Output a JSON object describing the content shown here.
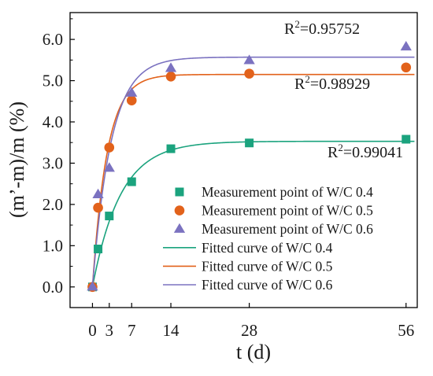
{
  "chart_data": {
    "type": "scatter",
    "xlabel": "t (d)",
    "ylabel": "(m’-m)/m (%)",
    "xlim": [
      -4,
      58
    ],
    "ylim": [
      -0.5,
      6.65
    ],
    "x_ticks": [
      0,
      3,
      7,
      14,
      28,
      56
    ],
    "x_tick_labels": [
      "0",
      "3",
      "7",
      "14",
      "28",
      "56"
    ],
    "y_ticks": [
      0,
      1,
      2,
      3,
      4,
      5,
      6
    ],
    "y_tick_labels": [
      "0.0",
      "1.0",
      "2.0",
      "3.0",
      "4.0",
      "5.0",
      "6.0"
    ],
    "grid": false,
    "legend_position": "bottom-right",
    "series": [
      {
        "name": "Measurement point  of W/C 0.4",
        "kind": "points",
        "marker": "square",
        "color": "#1ba37e",
        "x": [
          0,
          1,
          3,
          7,
          14,
          28,
          56
        ],
        "y": [
          0.0,
          0.92,
          1.72,
          2.55,
          3.35,
          3.49,
          3.58
        ]
      },
      {
        "name": "Measurement point  of W/C 0.5",
        "kind": "points",
        "marker": "circle",
        "color": "#e2621b",
        "x": [
          0,
          1,
          3,
          7,
          14,
          28,
          56
        ],
        "y": [
          0.0,
          1.92,
          3.38,
          4.52,
          5.1,
          5.17,
          5.32
        ]
      },
      {
        "name": "Measurement point  of W/C 0.6",
        "kind": "points",
        "marker": "triangle",
        "color": "#7b72c0",
        "x": [
          0,
          1,
          3,
          7,
          14,
          28,
          56
        ],
        "y": [
          0.0,
          2.24,
          2.88,
          4.7,
          5.3,
          5.49,
          5.82
        ]
      },
      {
        "name": "Fitted curve of  W/C 0.4",
        "kind": "curve",
        "color": "#1ba37e",
        "amplitude": 3.53,
        "rate": 0.2,
        "r2_label": "R",
        "r2_sup": "2",
        "r2_value": "=0.99041"
      },
      {
        "name": "Fitted curve of  W/C 0.5",
        "kind": "curve",
        "color": "#e2621b",
        "amplitude": 5.15,
        "rate": 0.38,
        "r2_label": "R",
        "r2_sup": "2",
        "r2_value": "=0.98929"
      },
      {
        "name": "Fitted curve of  W/C 0.6",
        "kind": "curve",
        "color": "#7b72c0",
        "amplitude": 5.57,
        "rate": 0.3,
        "r2_label": "R",
        "r2_sup": "2",
        "r2_value": "=0.95752"
      }
    ]
  }
}
